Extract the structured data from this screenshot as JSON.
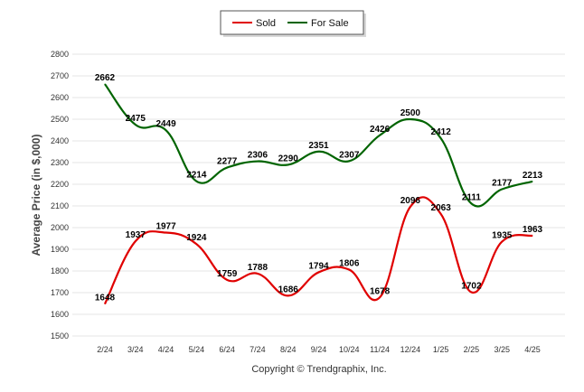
{
  "chart_data": {
    "type": "line",
    "categories": [
      "2/24",
      "3/24",
      "4/24",
      "5/24",
      "6/24",
      "7/24",
      "8/24",
      "9/24",
      "10/24",
      "11/24",
      "12/24",
      "1/25",
      "2/25",
      "3/25",
      "4/25"
    ],
    "series": [
      {
        "name": "Sold",
        "color": "#e00000",
        "values": [
          1648,
          1937,
          1977,
          1924,
          1759,
          1788,
          1686,
          1794,
          1806,
          1678,
          2096,
          2063,
          1702,
          1935,
          1963
        ]
      },
      {
        "name": "For Sale",
        "color": "#006400",
        "values": [
          2662,
          2475,
          2449,
          2214,
          2277,
          2306,
          2290,
          2351,
          2307,
          2426,
          2500,
          2412,
          2111,
          2177,
          2213
        ]
      }
    ],
    "ylabel": "Average Price (in $,000)",
    "xlabel": "",
    "ylim": [
      1500,
      2800
    ],
    "yticks": [
      1500,
      1600,
      1700,
      1800,
      1900,
      2000,
      2100,
      2200,
      2300,
      2400,
      2500,
      2600,
      2700,
      2800
    ],
    "grid": true,
    "legend": "top-center",
    "footer": "Copyright © Trendgraphix, Inc."
  }
}
